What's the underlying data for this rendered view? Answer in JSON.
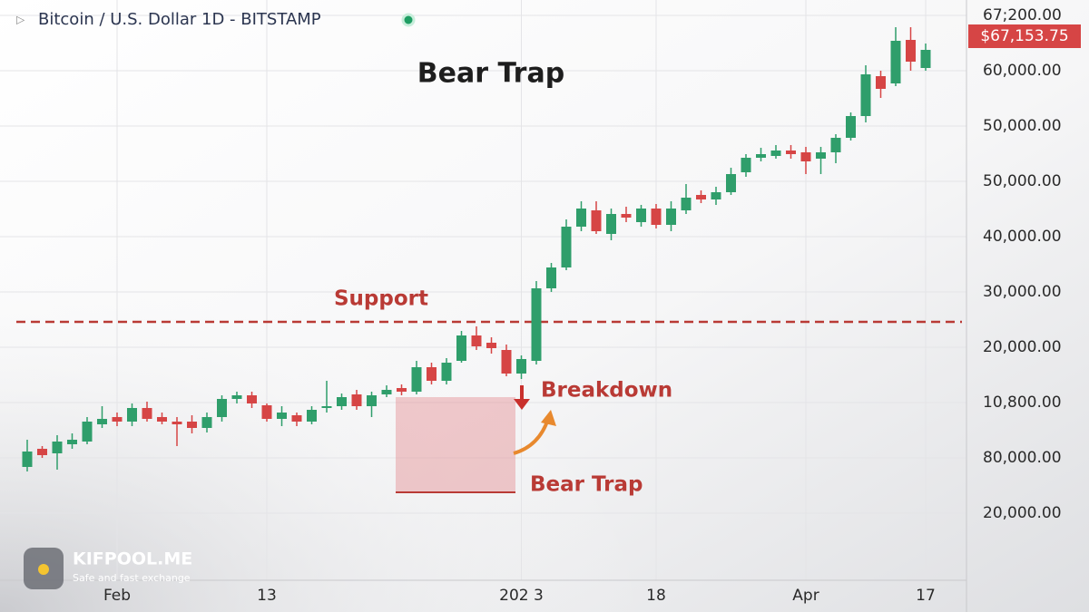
{
  "chart_data": {
    "type": "candlestick",
    "header": "Bitcoin / U.S. Dollar 1D - BITSTAMP",
    "title": "Bear Trap",
    "categories": [
      null,
      null,
      null,
      null,
      null,
      null,
      "Feb",
      null,
      null,
      null,
      null,
      null,
      null,
      null,
      null,
      null,
      "13",
      null,
      null,
      null,
      null,
      null,
      null,
      null,
      null,
      null,
      null,
      null,
      null,
      null,
      null,
      null,
      null,
      "202 3",
      null,
      null,
      null,
      null,
      null,
      null,
      null,
      null,
      "18",
      null,
      null,
      null,
      null,
      null,
      null,
      null,
      null,
      null,
      "Apr",
      null,
      null,
      null,
      null,
      null,
      null,
      null,
      "17"
    ],
    "open": [
      18500,
      20500,
      20000,
      21000,
      21300,
      23200,
      24000,
      23500,
      25000,
      24000,
      23500,
      23500,
      22800,
      24000,
      26000,
      26400,
      25300,
      23800,
      24200,
      23500,
      25000,
      25200,
      26500,
      25200,
      26500,
      27200,
      26800,
      29500,
      28000,
      30200,
      33000,
      32200,
      31400,
      28800,
      30200,
      38200,
      40500,
      45000,
      46800,
      44200,
      46400,
      45500,
      47000,
      45200,
      46800,
      48500,
      48000,
      48800,
      51000,
      52600,
      52800,
      53400,
      53200,
      52500,
      53200,
      54800,
      57200,
      61600,
      60800,
      65600,
      62500
    ],
    "high": [
      21500,
      20800,
      22000,
      22200,
      24000,
      25200,
      24500,
      25500,
      25700,
      24500,
      24000,
      24200,
      24500,
      26400,
      26800,
      26800,
      25500,
      25200,
      24500,
      25200,
      28000,
      26600,
      27000,
      26800,
      27500,
      27600,
      30200,
      30000,
      30500,
      33500,
      34000,
      32800,
      32000,
      30800,
      39000,
      41000,
      45800,
      47800,
      47800,
      47000,
      47200,
      47400,
      47500,
      47800,
      49700,
      49000,
      49400,
      51500,
      53000,
      53700,
      54000,
      54000,
      53800,
      53800,
      55200,
      57600,
      62800,
      62200,
      67000,
      67000,
      65200
    ],
    "low": [
      18000,
      19500,
      18200,
      20500,
      21000,
      22800,
      23000,
      23000,
      23500,
      23200,
      20800,
      22200,
      22300,
      23500,
      25500,
      25000,
      23500,
      23000,
      23000,
      23200,
      24500,
      24800,
      24800,
      24000,
      26200,
      26400,
      26500,
      27600,
      27600,
      30000,
      31400,
      31000,
      28500,
      28200,
      29800,
      37800,
      40200,
      44500,
      44200,
      43500,
      45500,
      45000,
      44800,
      44500,
      46400,
      47600,
      47400,
      48500,
      50500,
      52200,
      52500,
      52500,
      50800,
      50800,
      52000,
      54500,
      56500,
      59200,
      60500,
      62200,
      62200
    ],
    "close": [
      20200,
      19800,
      21300,
      21500,
      23500,
      23800,
      23500,
      25000,
      23800,
      23500,
      23200,
      22800,
      24000,
      26000,
      26400,
      25500,
      23800,
      24500,
      23500,
      24800,
      25200,
      26200,
      25200,
      26400,
      27000,
      26800,
      29500,
      28000,
      30000,
      33000,
      31800,
      31600,
      28800,
      30400,
      38200,
      40500,
      45000,
      47000,
      44500,
      46400,
      46000,
      47000,
      45200,
      47000,
      48200,
      48000,
      48800,
      50800,
      52600,
      53000,
      53400,
      53000,
      52200,
      53200,
      54800,
      57200,
      61800,
      60200,
      65500,
      63200,
      64500
    ],
    "up_color": "#2f9e6b",
    "down_color": "#d64545",
    "ylim": [
      6000,
      70000
    ],
    "y_axis_labels": [
      "67;200.00",
      "60,000.00",
      "50,000.00",
      "50,000.00",
      "40,000.00",
      "30,000.00",
      "20,000.00",
      "10,800.00",
      "80,000.00",
      "20,000.00"
    ],
    "last_price": {
      "value": 67153.75,
      "label": "$67,153.75"
    },
    "support_level": 34500,
    "support_label": "Support",
    "bear_trap_zone": [
      15700,
      26200
    ],
    "breakdown_label": "Breakdown",
    "bear_trap_label": "Bear Trap",
    "brand": "KIFPOOL.ME",
    "tagline": "Safe and fast exchange"
  }
}
